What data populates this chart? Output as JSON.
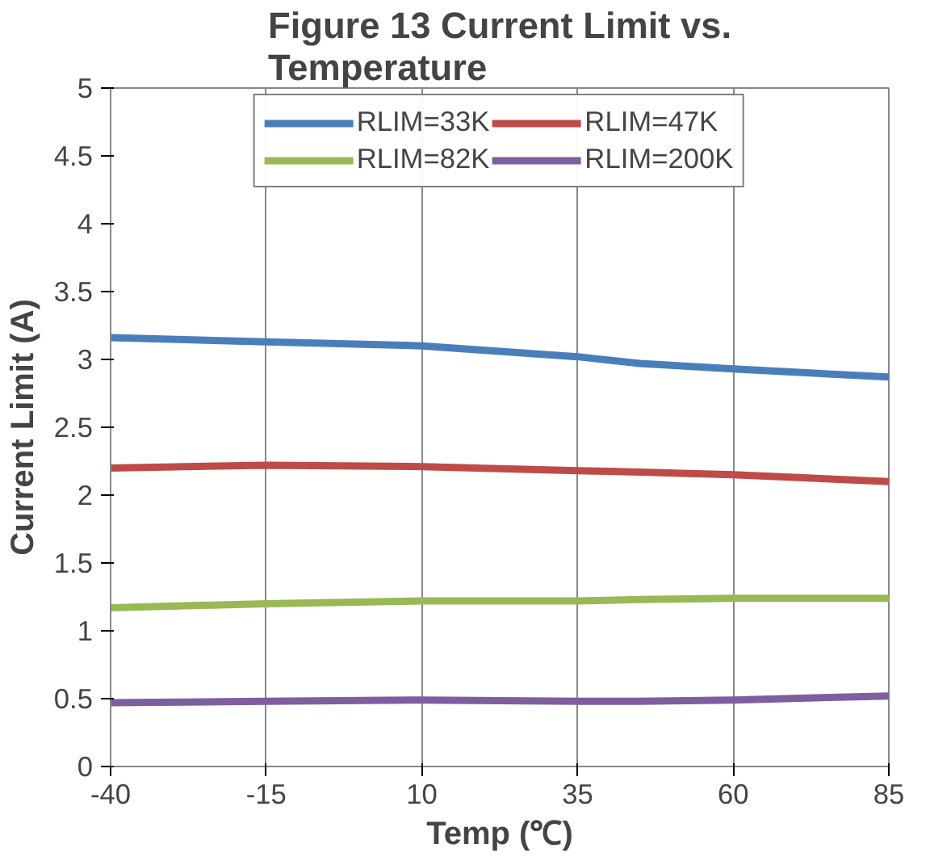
{
  "chart_data": {
    "type": "line",
    "title": "Figure 13 Current Limit vs. Temperature",
    "xlabel": "Temp (℃)",
    "ylabel": "Current Limit (A)",
    "x": [
      -40,
      -15,
      10,
      35,
      45,
      60,
      85
    ],
    "series": [
      {
        "name": "RLIM=33K",
        "color": "#4a7ebb",
        "values": [
          3.16,
          3.13,
          3.1,
          3.02,
          2.97,
          2.93,
          2.87
        ]
      },
      {
        "name": "RLIM=47K",
        "color": "#be4b48",
        "values": [
          2.2,
          2.22,
          2.21,
          2.18,
          2.17,
          2.15,
          2.1
        ]
      },
      {
        "name": "RLIM=82K",
        "color": "#98b954",
        "values": [
          1.17,
          1.2,
          1.22,
          1.22,
          1.23,
          1.24,
          1.24
        ]
      },
      {
        "name": "RLIM=200K",
        "color": "#7d5fa0",
        "values": [
          0.47,
          0.48,
          0.49,
          0.48,
          0.48,
          0.49,
          0.52
        ]
      }
    ],
    "xlim": [
      -40,
      85
    ],
    "xticks": [
      -40,
      -15,
      10,
      35,
      60,
      85
    ],
    "ylim": [
      0,
      5
    ],
    "yticks": [
      0,
      0.5,
      1,
      1.5,
      2,
      2.5,
      3,
      3.5,
      4,
      4.5,
      5
    ],
    "grid": "x",
    "legend": "top",
    "marker": "none",
    "line_style": "solid"
  }
}
